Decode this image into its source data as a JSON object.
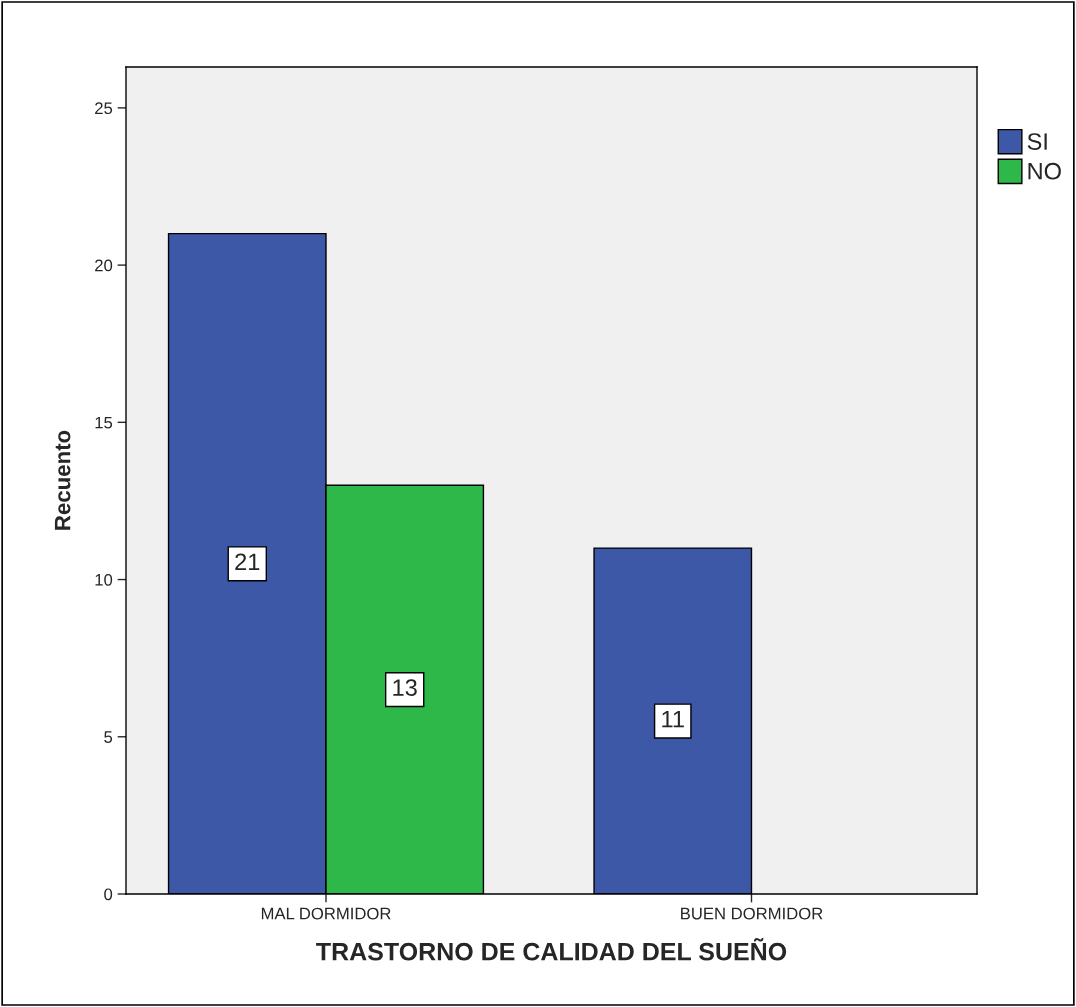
{
  "chart_data": {
    "type": "bar",
    "xlabel": "TRASTORNO DE CALIDAD DEL SUEÑO",
    "ylabel": "Recuento",
    "categories": [
      "MAL DORMIDOR",
      "BUEN DORMIDOR"
    ],
    "series": [
      {
        "name": "SI",
        "color": "#3e58a8",
        "values": [
          21,
          11
        ]
      },
      {
        "name": "NO",
        "color": "#2eb84a",
        "values": [
          13,
          null
        ]
      }
    ],
    "ylim": [
      0,
      26.3
    ],
    "yticks": [
      0,
      5,
      10,
      15,
      20,
      25
    ],
    "data_labels": true,
    "grid": false,
    "legend": "top right"
  }
}
